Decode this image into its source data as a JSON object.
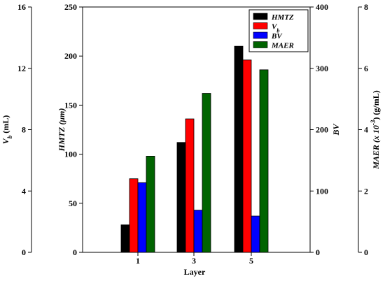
{
  "chart_data": {
    "type": "bar",
    "xlabel": "Layer",
    "categories": [
      "1",
      "3",
      "5"
    ],
    "series": [
      {
        "name": "HMTZ",
        "color": "#000000",
        "axis": "hmtz",
        "values": [
          28,
          112,
          210
        ]
      },
      {
        "name": "V_b",
        "color": "#ff0000",
        "axis": "hmtz",
        "values": [
          75,
          136,
          196
        ]
      },
      {
        "name": "BV",
        "color": "#0000ff",
        "axis": "hmtz",
        "values": [
          71,
          43,
          37
        ]
      },
      {
        "name": "MAER",
        "color": "#006400",
        "axis": "hmtz",
        "values": [
          98,
          162,
          186
        ]
      }
    ],
    "axes": {
      "vb": {
        "label_main": "V",
        "label_sub": "b",
        "label_unit": " (mL)",
        "ylim": [
          0,
          16
        ],
        "ticks": [
          "0",
          "4",
          "8",
          "12",
          "16"
        ]
      },
      "hmtz": {
        "label": "HMTZ (μm)",
        "ylim": [
          0,
          250
        ],
        "ticks": [
          "0",
          "50",
          "100",
          "150",
          "200",
          "250"
        ]
      },
      "bv": {
        "label": "BV",
        "ylim": [
          0,
          400
        ],
        "ticks": [
          "0",
          "100",
          "200",
          "300",
          "400"
        ]
      },
      "maer": {
        "label_main": "MAER (x 10",
        "label_sup": "-3",
        "label_unit": ") (g/mL)",
        "ylim": [
          0,
          8
        ],
        "ticks": [
          "0",
          "2",
          "4",
          "6",
          "8"
        ]
      }
    },
    "legend": {
      "position": "top-right",
      "entries": [
        {
          "label": "HMTZ",
          "sub": ""
        },
        {
          "label": "V",
          "sub": "b"
        },
        {
          "label": "BV",
          "sub": ""
        },
        {
          "label": "MAER",
          "sub": ""
        }
      ]
    },
    "grid": false
  }
}
